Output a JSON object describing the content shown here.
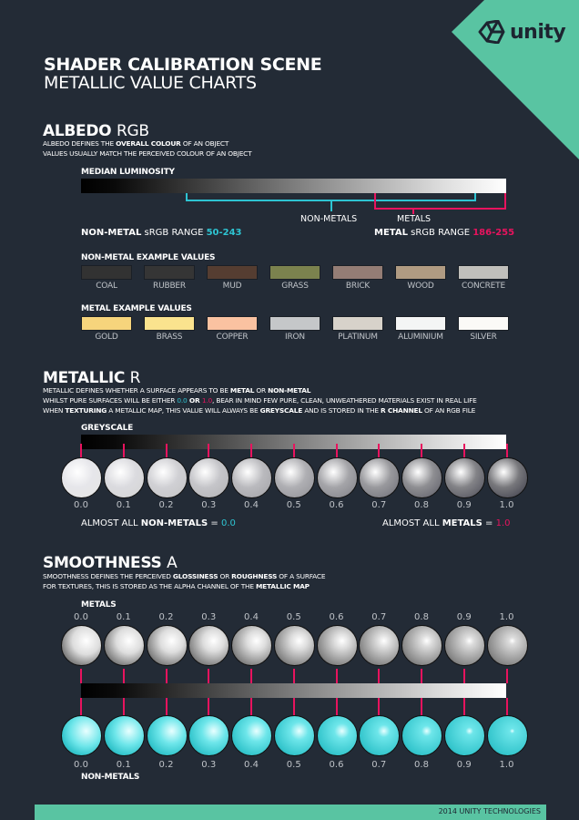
{
  "brand": {
    "logo": "unity",
    "accent": "#59c4a2",
    "cyan": "#2ec4d2",
    "magenta": "#e8135e"
  },
  "header": {
    "title": "SHADER CALIBRATION SCENE",
    "subtitle": "METALLIC VALUE CHARTS"
  },
  "albedo": {
    "title_bold": "ALBEDO",
    "title_rest": "RGB",
    "desc1_a": "ALBEDO DEFINES THE ",
    "desc1_b": "OVERALL COLOUR",
    "desc1_c": " OF AN OBJECT",
    "desc2": "VALUES USUALLY MATCH THE PERCEIVED COLOUR OF AN OBJECT",
    "bar_label": "MEDIAN LUMINOSITY",
    "nonmetals_label": "NON-METALS",
    "metals_label": "METALS",
    "nonmetal_range": {
      "bold": "NON-METAL",
      "text": " sRGB RANGE ",
      "value": "50-243"
    },
    "metal_range": {
      "bold": "METAL",
      "text": " sRGB RANGE ",
      "value": "186-255"
    },
    "nonmetal_title": "NON-METAL EXAMPLE VALUES",
    "nonmetal_examples": [
      {
        "name": "COAL",
        "color": "#323232"
      },
      {
        "name": "RUBBER",
        "color": "#353535"
      },
      {
        "name": "MUD",
        "color": "#553d31"
      },
      {
        "name": "GRASS",
        "color": "#7b824e"
      },
      {
        "name": "BRICK",
        "color": "#947d75"
      },
      {
        "name": "WOOD",
        "color": "#b09b82"
      },
      {
        "name": "CONCRETE",
        "color": "#c0bfbb"
      }
    ],
    "metal_title": "METAL EXAMPLE VALUES",
    "metal_examples": [
      {
        "name": "GOLD",
        "color": "#f6d47c"
      },
      {
        "name": "BRASS",
        "color": "#fae38e"
      },
      {
        "name": "COPPER",
        "color": "#fac2a1"
      },
      {
        "name": "IRON",
        "color": "#c5c7c9"
      },
      {
        "name": "PLATINUM",
        "color": "#d7d2ca"
      },
      {
        "name": "ALUMINIUM",
        "color": "#f4f5f5"
      },
      {
        "name": "SILVER",
        "color": "#fbfaf7"
      }
    ]
  },
  "metallic": {
    "title_bold": "METALLIC",
    "title_rest": "R",
    "l1_a": "METALLIC DEFINES WHETHER A SURFACE APPEARS TO BE ",
    "l1_b": "METAL",
    "l1_c": " OR ",
    "l1_d": "NON-METAL",
    "l2_a": "WHILST PURE SURFACES WILL BE EITHER ",
    "l2_b": "0.0",
    "l2_c": " OR ",
    "l2_d": "1.0",
    "l2_e": ", BEAR IN MIND FEW PURE, CLEAN, UNWEATHERED MATERIALS EXIST IN REAL LIFE",
    "l3_a": "WHEN ",
    "l3_b": "TEXTURING",
    "l3_c": " A METALLIC MAP, THIS VALUE WILL ALWAYS BE ",
    "l3_d": "GREYSCALE",
    "l3_e": " AND IS STORED IN THE ",
    "l3_f": "R CHANNEL",
    "l3_g": " OF AN RGB FILE",
    "bar_label": "GREYSCALE",
    "values": [
      "0.0",
      "0.1",
      "0.2",
      "0.3",
      "0.4",
      "0.5",
      "0.6",
      "0.7",
      "0.8",
      "0.9",
      "1.0"
    ],
    "nonmetal_note": {
      "a": "ALMOST ALL ",
      "b": "NON-METALS",
      "c": " = ",
      "d": "0.0"
    },
    "metal_note": {
      "a": "ALMOST ALL ",
      "b": "METALS",
      "c": " = ",
      "d": "1.0"
    }
  },
  "smoothness": {
    "title_bold": "SMOOTHNESS",
    "title_rest": "A",
    "l1_a": "SMOOTHNESS DEFINES THE PERCEIVED ",
    "l1_b": "GLOSSINESS",
    "l1_c": " OR ",
    "l1_d": "ROUGHNESS",
    "l1_e": " OF A SURFACE",
    "l2_a": "FOR TEXTURES, THIS IS STORED AS THE ALPHA CHANNEL OF THE ",
    "l2_b": "METALLIC MAP",
    "metals_label": "METALS",
    "nonmetals_label": "NON-METALS",
    "values": [
      "0.0",
      "0.1",
      "0.2",
      "0.3",
      "0.4",
      "0.5",
      "0.6",
      "0.7",
      "0.8",
      "0.9",
      "1.0"
    ]
  },
  "footer": {
    "text": "2014 UNITY TECHNOLOGIES"
  }
}
